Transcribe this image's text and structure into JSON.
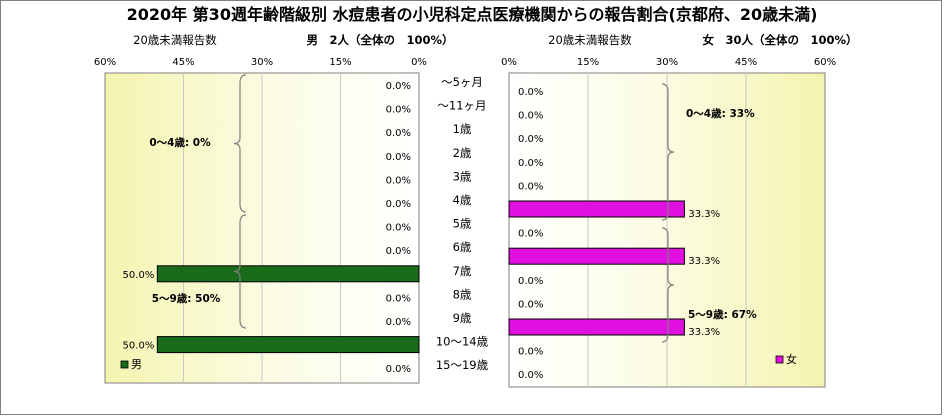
{
  "chart_data": {
    "type": "bar",
    "title": "2020年 第30週年齢階級別 水痘患者の小児科定点医療機関からの報告割合(京都府、20歳未満)",
    "categories": [
      "～5ヶ月",
      "～11ヶ月",
      "1歳",
      "2歳",
      "3歳",
      "4歳",
      "5歳",
      "6歳",
      "7歳",
      "8歳",
      "9歳",
      "10～14歳",
      "15～19歳"
    ],
    "male": {
      "axis_caption": "20歳未満報告数",
      "header": "男　2人（全体の　100%）",
      "ticks": [
        "60%",
        "45%",
        "30%",
        "15%",
        "0%"
      ],
      "xlim": [
        0,
        60
      ],
      "color": "#1a6b1a",
      "series": [
        {
          "name": "男",
          "values": [
            0,
            0,
            0,
            0,
            0,
            0,
            0,
            0,
            50,
            0,
            0,
            50,
            0
          ]
        }
      ],
      "value_labels": [
        "0.0%",
        "0.0%",
        "0.0%",
        "0.0%",
        "0.0%",
        "0.0%",
        "0.0%",
        "0.0%",
        "50.0%",
        "0.0%",
        "0.0%",
        "50.0%",
        "0.0%"
      ],
      "groups": [
        {
          "label": "0～4歳: 0%"
        },
        {
          "label": "5～9歳: 50%"
        }
      ]
    },
    "female": {
      "axis_caption": "20歳未満報告数",
      "header": "女　30人（全体の　100%）",
      "ticks": [
        "0%",
        "15%",
        "30%",
        "45%",
        "60%"
      ],
      "xlim": [
        0,
        60
      ],
      "color": "#e010e0",
      "series": [
        {
          "name": "女",
          "values": [
            0,
            0,
            0,
            0,
            0,
            33.3,
            0,
            33.3,
            0,
            0,
            33.3,
            0,
            0
          ]
        }
      ],
      "value_labels": [
        "0.0%",
        "0.0%",
        "0.0%",
        "0.0%",
        "0.0%",
        "33.3%",
        "0.0%",
        "33.3%",
        "0.0%",
        "0.0%",
        "33.3%",
        "0.0%",
        "0.0%"
      ],
      "groups": [
        {
          "label": "0～4歳: 33%"
        },
        {
          "label": "5～9歳: 67%"
        }
      ]
    }
  }
}
